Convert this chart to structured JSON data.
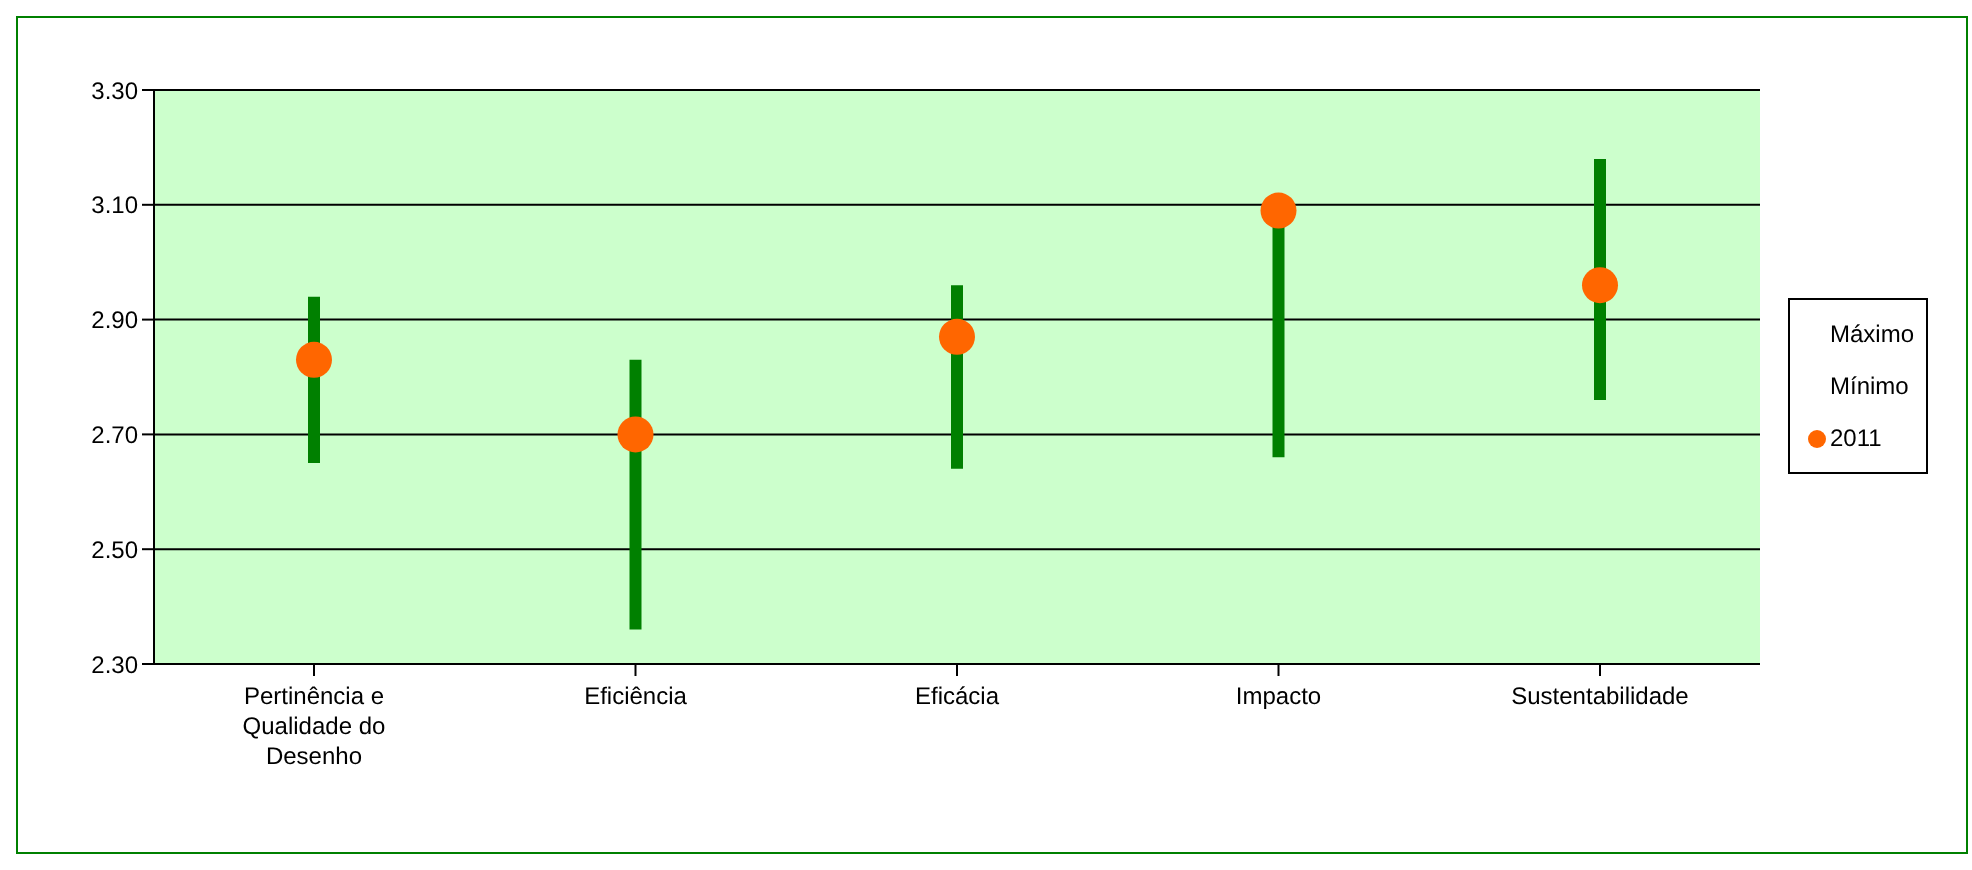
{
  "chart_data": {
    "type": "scatter",
    "categories": [
      "Pertinência e Qualidade do Desenho",
      "Eficiência",
      "Eficácia",
      "Impacto",
      "Sustentabilidade"
    ],
    "series": [
      {
        "name": "2011",
        "color": "#ff6600",
        "marker": "circle",
        "values": [
          2.83,
          2.7,
          2.87,
          3.09,
          2.96
        ],
        "errors": [
          [
            2.65,
            2.94
          ],
          [
            2.36,
            2.83
          ],
          [
            2.64,
            2.96
          ],
          [
            2.66,
            3.09
          ],
          [
            2.76,
            3.18
          ]
        ]
      }
    ],
    "annotations": [
      "Máximo",
      "Mínimo"
    ],
    "ylim": [
      2.3,
      3.3
    ],
    "yticks": [
      {
        "value": 2.3,
        "label": "2.30"
      },
      {
        "value": 2.5,
        "label": "2.50"
      },
      {
        "value": 2.7,
        "label": "2.70"
      },
      {
        "value": 2.9,
        "label": "2.90"
      },
      {
        "value": 3.1,
        "label": "3.10"
      },
      {
        "value": 3.3,
        "label": "3.30"
      }
    ],
    "grid": "y",
    "legend": "right"
  }
}
